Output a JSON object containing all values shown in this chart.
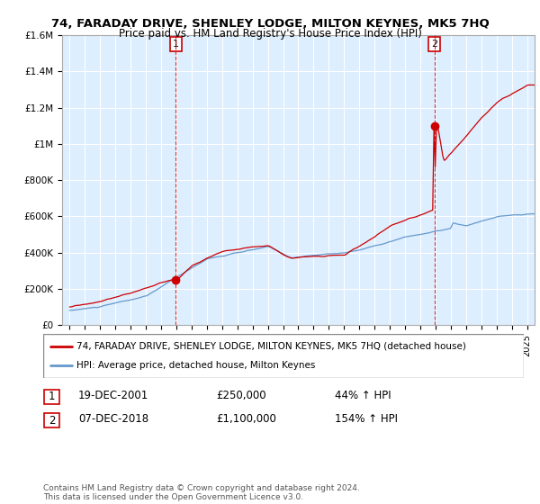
{
  "title": "74, FARADAY DRIVE, SHENLEY LODGE, MILTON KEYNES, MK5 7HQ",
  "subtitle": "Price paid vs. HM Land Registry's House Price Index (HPI)",
  "legend_line1": "74, FARADAY DRIVE, SHENLEY LODGE, MILTON KEYNES, MK5 7HQ (detached house)",
  "legend_line2": "HPI: Average price, detached house, Milton Keynes",
  "annotation1_label": "1",
  "annotation1_date": "19-DEC-2001",
  "annotation1_price": "£250,000",
  "annotation1_hpi": "44% ↑ HPI",
  "annotation2_label": "2",
  "annotation2_date": "07-DEC-2018",
  "annotation2_price": "£1,100,000",
  "annotation2_hpi": "154% ↑ HPI",
  "footer": "Contains HM Land Registry data © Crown copyright and database right 2024.\nThis data is licensed under the Open Government Licence v3.0.",
  "hpi_color": "#6699cc",
  "price_color": "#cc0000",
  "annotation_color": "#cc0000",
  "background_color": "#ffffff",
  "plot_bg_color": "#ddeeff",
  "ylim": [
    0,
    1600000
  ],
  "yticks": [
    0,
    200000,
    400000,
    600000,
    800000,
    1000000,
    1200000,
    1400000,
    1600000
  ],
  "ytick_labels": [
    "£0",
    "£200K",
    "£400K",
    "£600K",
    "£800K",
    "£1M",
    "£1.2M",
    "£1.4M",
    "£1.6M"
  ],
  "sale1_year": 2001.96,
  "sale1_price": 250000,
  "sale2_year": 2018.92,
  "sale2_price": 1100000,
  "vline1_x": 2001.96,
  "vline2_x": 2018.92,
  "xlim_start": 1994.5,
  "xlim_end": 2025.5
}
